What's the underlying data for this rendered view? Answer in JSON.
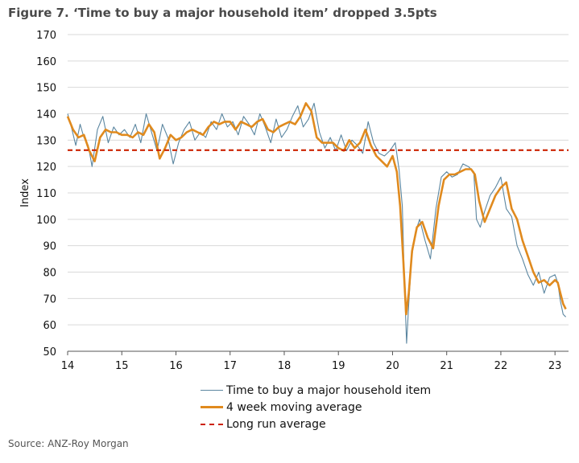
{
  "title": "Figure 7. ‘Time to buy a major household item’ dropped 3.5pts",
  "source": "Source: ANZ-Roy Morgan",
  "chart_data": {
    "type": "line",
    "ylabel": "Index",
    "xlabel": "",
    "ylim": [
      50,
      170
    ],
    "xlim": [
      14,
      23.25
    ],
    "yticks": [
      50,
      60,
      70,
      80,
      90,
      100,
      110,
      120,
      130,
      140,
      150,
      160,
      170
    ],
    "xticks": [
      "14",
      "15",
      "16",
      "17",
      "18",
      "19",
      "20",
      "21",
      "22",
      "23"
    ],
    "grid": "horizontal",
    "legend_position": "bottom",
    "colors": {
      "raw": "#5b86a0",
      "ma": "#e08a1e",
      "lr": "#cc2200"
    },
    "long_run_average": 126.2,
    "series": [
      {
        "name": "Time to buy a major household item",
        "style": "thin-line",
        "x": [
          14.0,
          14.08,
          14.15,
          14.23,
          14.3,
          14.38,
          14.45,
          14.55,
          14.65,
          14.75,
          14.85,
          14.95,
          15.05,
          15.15,
          15.25,
          15.35,
          15.45,
          15.55,
          15.65,
          15.75,
          15.85,
          15.95,
          16.05,
          16.15,
          16.25,
          16.35,
          16.45,
          16.55,
          16.65,
          16.75,
          16.85,
          16.95,
          17.05,
          17.15,
          17.25,
          17.35,
          17.45,
          17.55,
          17.65,
          17.75,
          17.85,
          17.95,
          18.05,
          18.15,
          18.25,
          18.35,
          18.45,
          18.55,
          18.65,
          18.75,
          18.85,
          18.95,
          19.05,
          19.15,
          19.25,
          19.35,
          19.45,
          19.55,
          19.65,
          19.75,
          19.85,
          19.95,
          20.05,
          20.12,
          20.18,
          20.22,
          20.26,
          20.3,
          20.35,
          20.42,
          20.5,
          20.6,
          20.7,
          20.8,
          20.9,
          21.0,
          21.1,
          21.2,
          21.3,
          21.4,
          21.5,
          21.55,
          21.62,
          21.7,
          21.8,
          21.9,
          22.0,
          22.1,
          22.2,
          22.3,
          22.4,
          22.5,
          22.6,
          22.7,
          22.8,
          22.9,
          23.0,
          23.05,
          23.1,
          23.15,
          23.2
        ],
        "values": [
          140,
          134,
          128,
          136,
          131,
          128,
          120,
          134,
          139,
          129,
          135,
          132,
          134,
          131,
          136,
          129,
          140,
          133,
          126,
          136,
          131,
          121,
          129,
          134,
          137,
          130,
          133,
          131,
          137,
          134,
          140,
          135,
          137,
          132,
          139,
          136,
          132,
          140,
          135,
          129,
          138,
          131,
          134,
          139,
          143,
          135,
          138,
          144,
          133,
          127,
          131,
          126,
          132,
          126,
          130,
          128,
          125,
          137,
          129,
          125,
          124,
          126,
          129,
          119,
          105,
          75,
          53,
          68,
          85,
          95,
          100,
          92,
          85,
          104,
          116,
          118,
          116,
          117,
          121,
          120,
          118,
          100,
          97,
          103,
          109,
          112,
          116,
          104,
          101,
          90,
          85,
          79,
          75,
          80,
          72,
          78,
          79,
          76,
          69,
          64,
          63
        ]
      },
      {
        "name": "4 week moving average",
        "style": "thick-line",
        "x": [
          14.0,
          14.1,
          14.2,
          14.3,
          14.4,
          14.5,
          14.6,
          14.7,
          14.8,
          14.9,
          15.0,
          15.1,
          15.2,
          15.3,
          15.4,
          15.5,
          15.6,
          15.7,
          15.8,
          15.9,
          16.0,
          16.1,
          16.2,
          16.3,
          16.4,
          16.5,
          16.6,
          16.7,
          16.8,
          16.9,
          17.0,
          17.1,
          17.2,
          17.3,
          17.4,
          17.5,
          17.6,
          17.7,
          17.8,
          17.9,
          18.0,
          18.1,
          18.2,
          18.3,
          18.4,
          18.5,
          18.6,
          18.7,
          18.8,
          18.9,
          19.0,
          19.1,
          19.2,
          19.3,
          19.4,
          19.5,
          19.6,
          19.7,
          19.8,
          19.9,
          20.0,
          20.08,
          20.14,
          20.2,
          20.25,
          20.3,
          20.36,
          20.45,
          20.55,
          20.65,
          20.75,
          20.85,
          20.95,
          21.05,
          21.15,
          21.25,
          21.35,
          21.45,
          21.52,
          21.6,
          21.7,
          21.8,
          21.9,
          22.0,
          22.1,
          22.2,
          22.3,
          22.4,
          22.5,
          22.6,
          22.7,
          22.8,
          22.9,
          23.0,
          23.05,
          23.1,
          23.15,
          23.2
        ],
        "values": [
          139,
          134,
          131,
          132,
          126,
          122,
          131,
          134,
          133,
          133,
          132,
          132,
          131,
          133,
          132,
          136,
          133,
          123,
          127,
          132,
          130,
          131,
          133,
          134,
          133,
          132,
          135,
          137,
          136,
          137,
          137,
          134,
          137,
          136,
          135,
          137,
          138,
          134,
          133,
          135,
          136,
          137,
          136,
          139,
          144,
          141,
          131,
          129,
          129,
          129,
          127,
          126,
          130,
          127,
          129,
          134,
          128,
          124,
          122,
          120,
          124,
          118,
          105,
          84,
          64,
          72,
          88,
          97,
          99,
          93,
          89,
          105,
          115,
          117,
          117,
          118,
          119,
          119,
          117,
          107,
          99,
          104,
          109,
          112,
          114,
          104,
          100,
          92,
          86,
          80,
          76,
          77,
          75,
          77,
          76,
          72,
          68,
          66
        ]
      },
      {
        "name": "Long run average",
        "style": "dashed-line",
        "x": [
          14.0,
          23.25
        ],
        "values": [
          126.2,
          126.2
        ]
      }
    ]
  }
}
